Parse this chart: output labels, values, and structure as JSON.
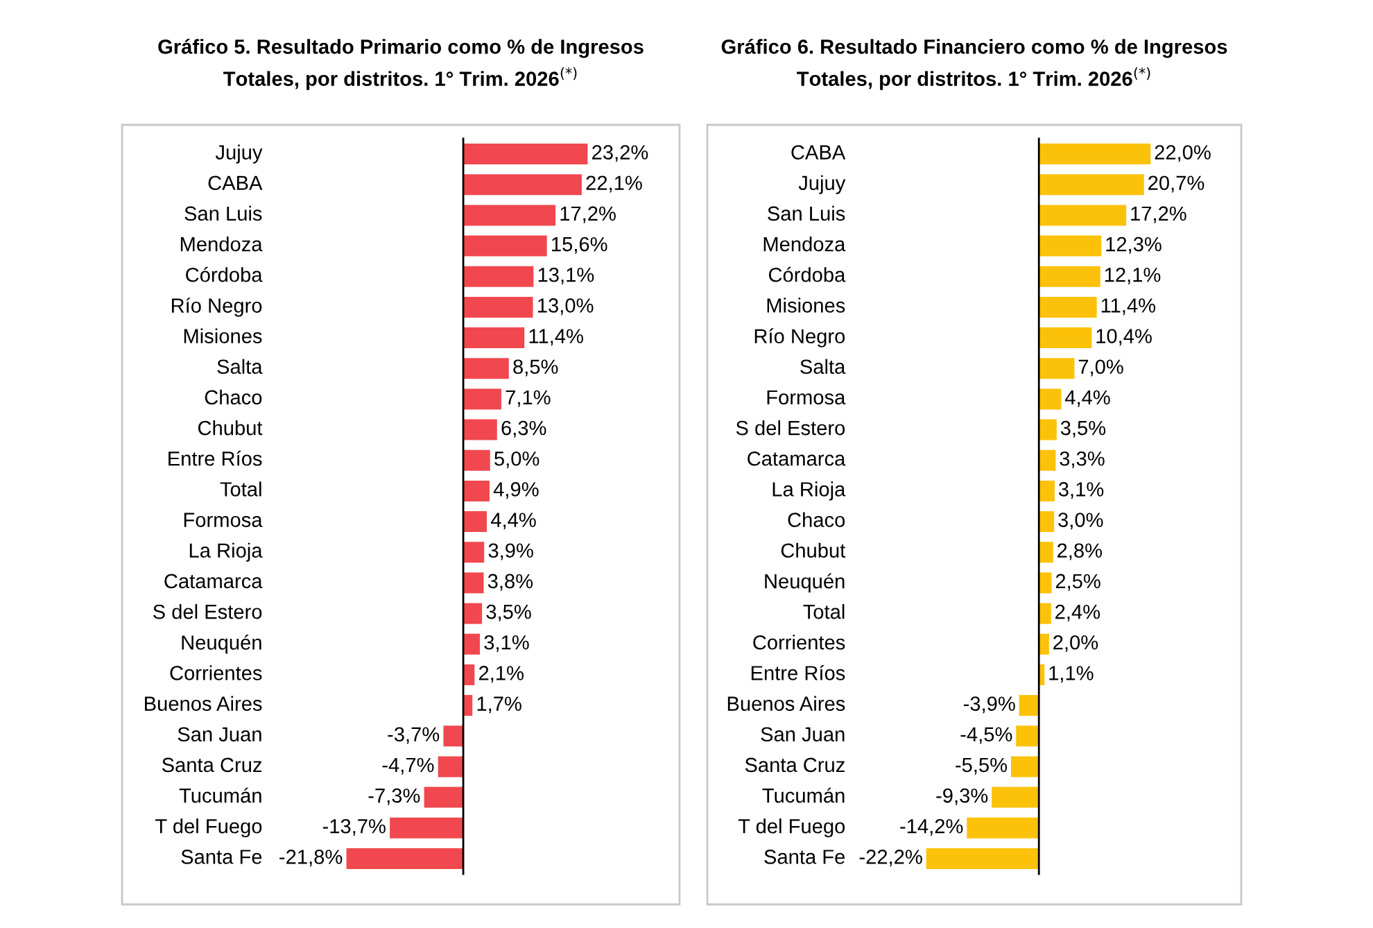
{
  "chart_data": [
    {
      "type": "bar",
      "orientation": "horizontal",
      "title": "Gráfico 5. Resultado Primario como % de Ingresos\nTotales, por distritos. 1° Trim. 2026$^{(*)}$",
      "categories": [
        "Jujuy",
        "CABA",
        "San Luis",
        "Mendoza",
        "Córdoba",
        "Río Negro",
        "Misiones",
        "Salta",
        "Chaco",
        "Chubut",
        "Entre Ríos",
        "Total",
        "Formosa",
        "La Rioja",
        "Catamarca",
        "S del Estero",
        "Neuquén",
        "Corrientes",
        "Buenos Aires",
        "San Juan",
        "Santa Cruz",
        "Tucumán",
        "T del Fuego",
        "Santa Fe"
      ],
      "values": [
        23.2,
        22.1,
        17.2,
        15.6,
        13.1,
        13.0,
        11.4,
        8.5,
        7.1,
        6.3,
        5.0,
        4.9,
        4.4,
        3.9,
        3.8,
        3.5,
        3.1,
        2.1,
        1.7,
        -3.7,
        -4.7,
        -7.3,
        -13.7,
        -21.8
      ],
      "value_labels": [
        "23,2%",
        "22,1%",
        "17,2%",
        "15,6%",
        "13,1%",
        "13,0%",
        "11,4%",
        "8,5%",
        "7,1%",
        "6,3%",
        "5,0%",
        "4,9%",
        "4,4%",
        "3,9%",
        "3,8%",
        "3,5%",
        "3,1%",
        "2,1%",
        "1,7%",
        "-3,7%",
        "-4,7%",
        "-7,3%",
        "-13,7%",
        "-21,8%"
      ],
      "color": "#f0484e"
    },
    {
      "type": "bar",
      "orientation": "horizontal",
      "title": "Gráfico 6. Resultado Financiero como % de Ingresos\nTotales, por distritos. 1° Trim. 2026$^{(*)}$",
      "categories": [
        "CABA",
        "Jujuy",
        "San Luis",
        "Mendoza",
        "Córdoba",
        "Misiones",
        "Río Negro",
        "Salta",
        "Formosa",
        "S del Estero",
        "Catamarca",
        "La Rioja",
        "Chaco",
        "Chubut",
        "Neuquén",
        "Total",
        "Corrientes",
        "Entre Ríos",
        "Buenos Aires",
        "San Juan",
        "Santa Cruz",
        "Tucumán",
        "T del Fuego",
        "Santa Fe"
      ],
      "values": [
        22.0,
        20.7,
        17.2,
        12.3,
        12.1,
        11.4,
        10.4,
        7.0,
        4.4,
        3.5,
        3.3,
        3.1,
        3.0,
        2.8,
        2.5,
        2.4,
        2.0,
        1.1,
        -3.9,
        -4.5,
        -5.5,
        -9.3,
        -14.2,
        -22.2
      ],
      "value_labels": [
        "22,0%",
        "20,7%",
        "17,2%",
        "12,3%",
        "12,1%",
        "11,4%",
        "10,4%",
        "7,0%",
        "4,4%",
        "3,5%",
        "3,3%",
        "3,1%",
        "3,0%",
        "2,8%",
        "2,5%",
        "2,4%",
        "2,0%",
        "1,1%",
        "-3,9%",
        "-4,5%",
        "-5,5%",
        "-9,3%",
        "-14,2%",
        "-22,2%"
      ],
      "color": "#fcc20a"
    }
  ]
}
